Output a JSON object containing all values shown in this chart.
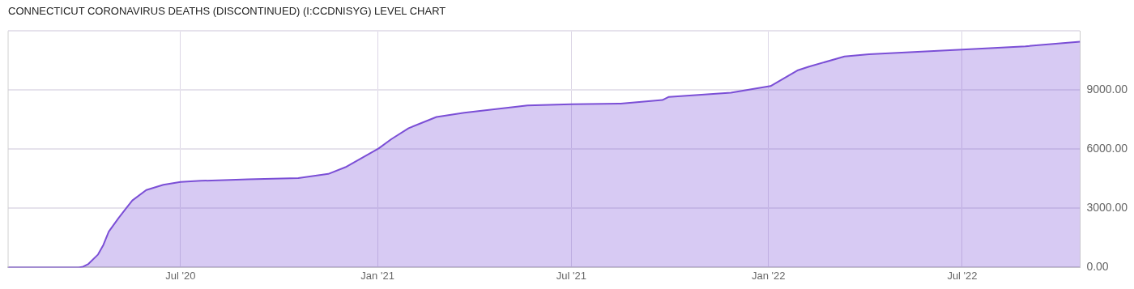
{
  "chart_data": {
    "type": "area",
    "title": "CONNECTICUT CORONAVIRUS DEATHS (DISCONTINUED) (I:CCDNISYG) LEVEL CHART",
    "x": [
      "2020-01-22",
      "2020-03-28",
      "2020-04-01",
      "2020-04-06",
      "2020-04-15",
      "2020-04-20",
      "2020-04-25",
      "2020-05-04",
      "2020-05-11",
      "2020-05-17",
      "2020-05-30",
      "2020-06-15",
      "2020-07-01",
      "2020-07-20",
      "2020-09-02",
      "2020-10-19",
      "2020-11-16",
      "2020-12-02",
      "2020-12-22",
      "2021-01-02",
      "2021-01-14",
      "2021-01-30",
      "2021-02-25",
      "2021-03-23",
      "2021-05-21",
      "2021-07-01",
      "2021-08-16",
      "2021-09-24",
      "2021-09-30",
      "2021-11-27",
      "2022-01-03",
      "2022-01-28",
      "2022-02-08",
      "2022-03-13",
      "2022-04-05",
      "2022-07-01",
      "2022-08-29",
      "2022-10-19"
    ],
    "series": [
      {
        "color": "#7b4fd6",
        "values": [
          0,
          0,
          40,
          180,
          660,
          1150,
          1820,
          2500,
          2990,
          3400,
          3930,
          4200,
          4340,
          4400,
          4480,
          4540,
          4750,
          5090,
          5700,
          6040,
          6520,
          7070,
          7640,
          7860,
          8230,
          8290,
          8320,
          8500,
          8660,
          8870,
          9210,
          10000,
          10200,
          10710,
          10820,
          11060,
          11230,
          11460
        ]
      }
    ],
    "xlim": [
      "2020-01-22",
      "2022-10-19"
    ],
    "xticks": [
      {
        "value": "2020-07-01",
        "label": "Jul '20"
      },
      {
        "value": "2021-01-01",
        "label": "Jan '21"
      },
      {
        "value": "2021-07-01",
        "label": "Jul '21"
      },
      {
        "value": "2022-01-01",
        "label": "Jan '22"
      },
      {
        "value": "2022-07-01",
        "label": "Jul '22"
      }
    ],
    "ylim": [
      0,
      12000
    ],
    "yticks": [
      {
        "value": 0,
        "label": "0.00"
      },
      {
        "value": 3000,
        "label": "3000.00"
      },
      {
        "value": 6000,
        "label": "6000.00"
      },
      {
        "value": 9000,
        "label": "9000.00"
      },
      {
        "value": 12000,
        "label": null
      }
    ],
    "grid": true
  }
}
